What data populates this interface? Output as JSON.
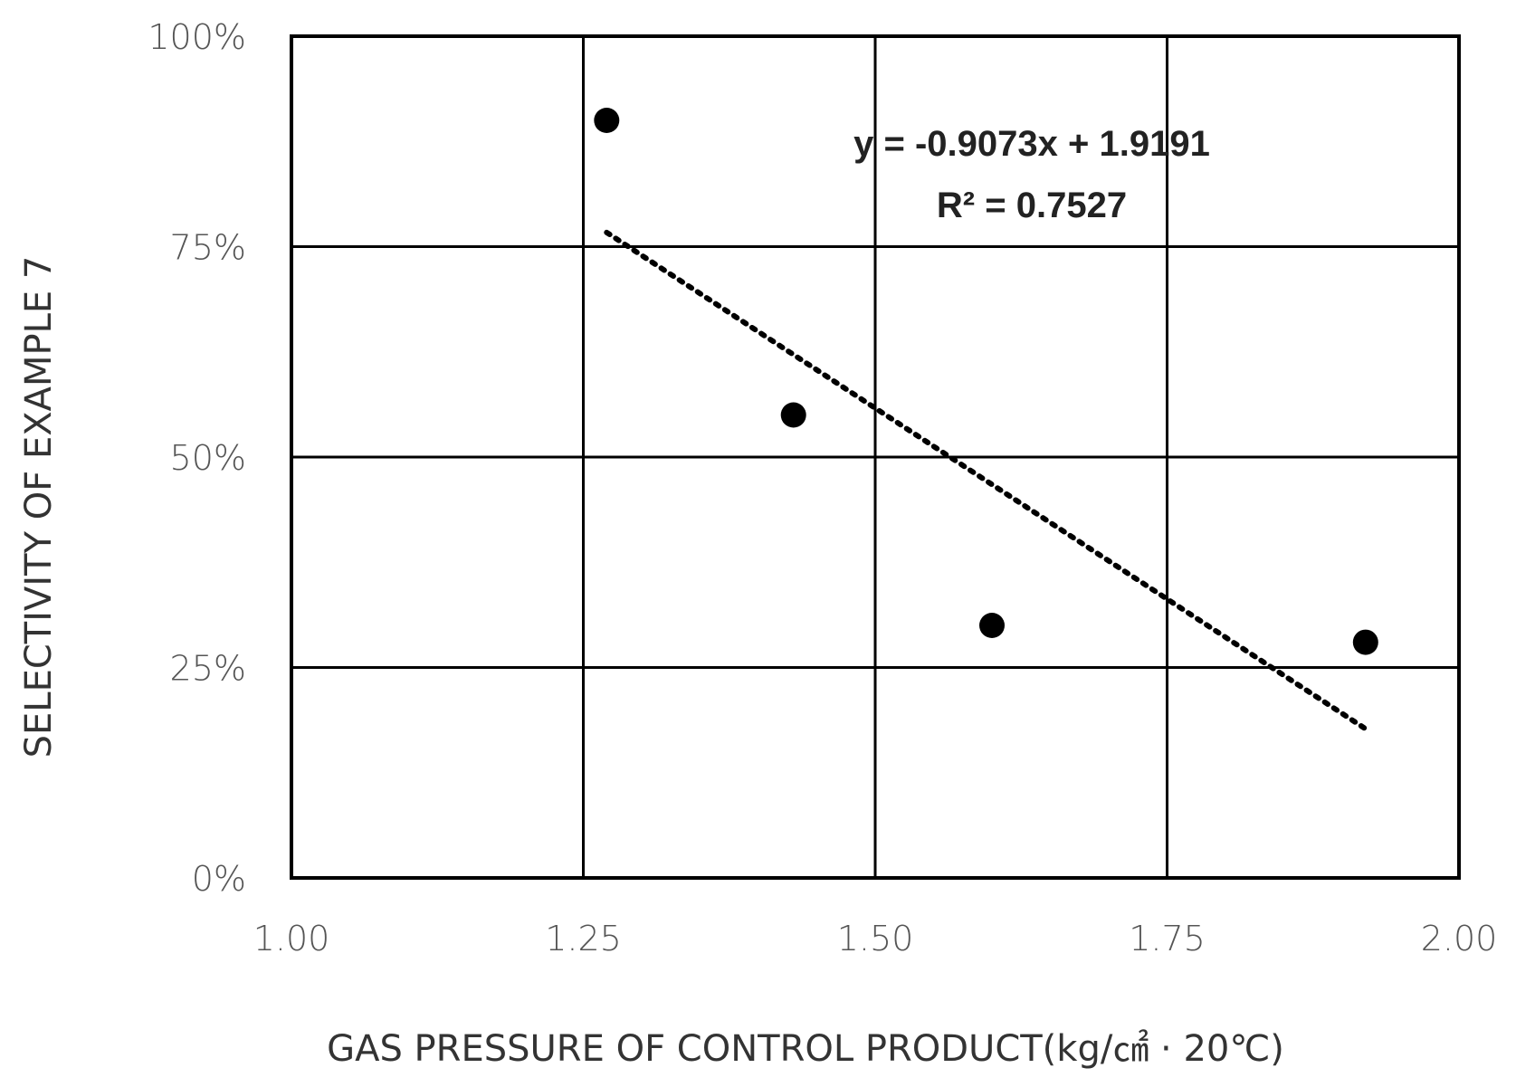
{
  "chart_data": {
    "type": "scatter",
    "x": [
      1.27,
      1.43,
      1.6,
      1.92
    ],
    "y": [
      0.9,
      0.55,
      0.3,
      0.28
    ],
    "xlabel": "GAS PRESSURE OF CONTROL PRODUCT(kg/㎠ · 20℃)",
    "ylabel": "SELECTIVITY OF EXAMPLE 7",
    "xlim": [
      1.0,
      2.0
    ],
    "ylim": [
      0,
      1.0
    ],
    "x_ticks": [
      1.0,
      1.25,
      1.5,
      1.75,
      2.0
    ],
    "x_tick_labels": [
      "1.00",
      "1.25",
      "1.50",
      "1.75",
      "2.00"
    ],
    "y_ticks": [
      0,
      0.25,
      0.5,
      0.75,
      1.0
    ],
    "y_tick_labels": [
      "0%",
      "25%",
      "50%",
      "75%",
      "100%"
    ],
    "grid": true,
    "trendline": {
      "type": "linear",
      "slope": -0.9073,
      "intercept": 1.9191,
      "x_range": [
        1.27,
        1.92
      ],
      "style": "dotted",
      "equation_text": "y = -0.9073x + 1.9191",
      "r2_text": "R² = 0.7527"
    },
    "marker_color": "#000000",
    "line_color": "#000000"
  }
}
